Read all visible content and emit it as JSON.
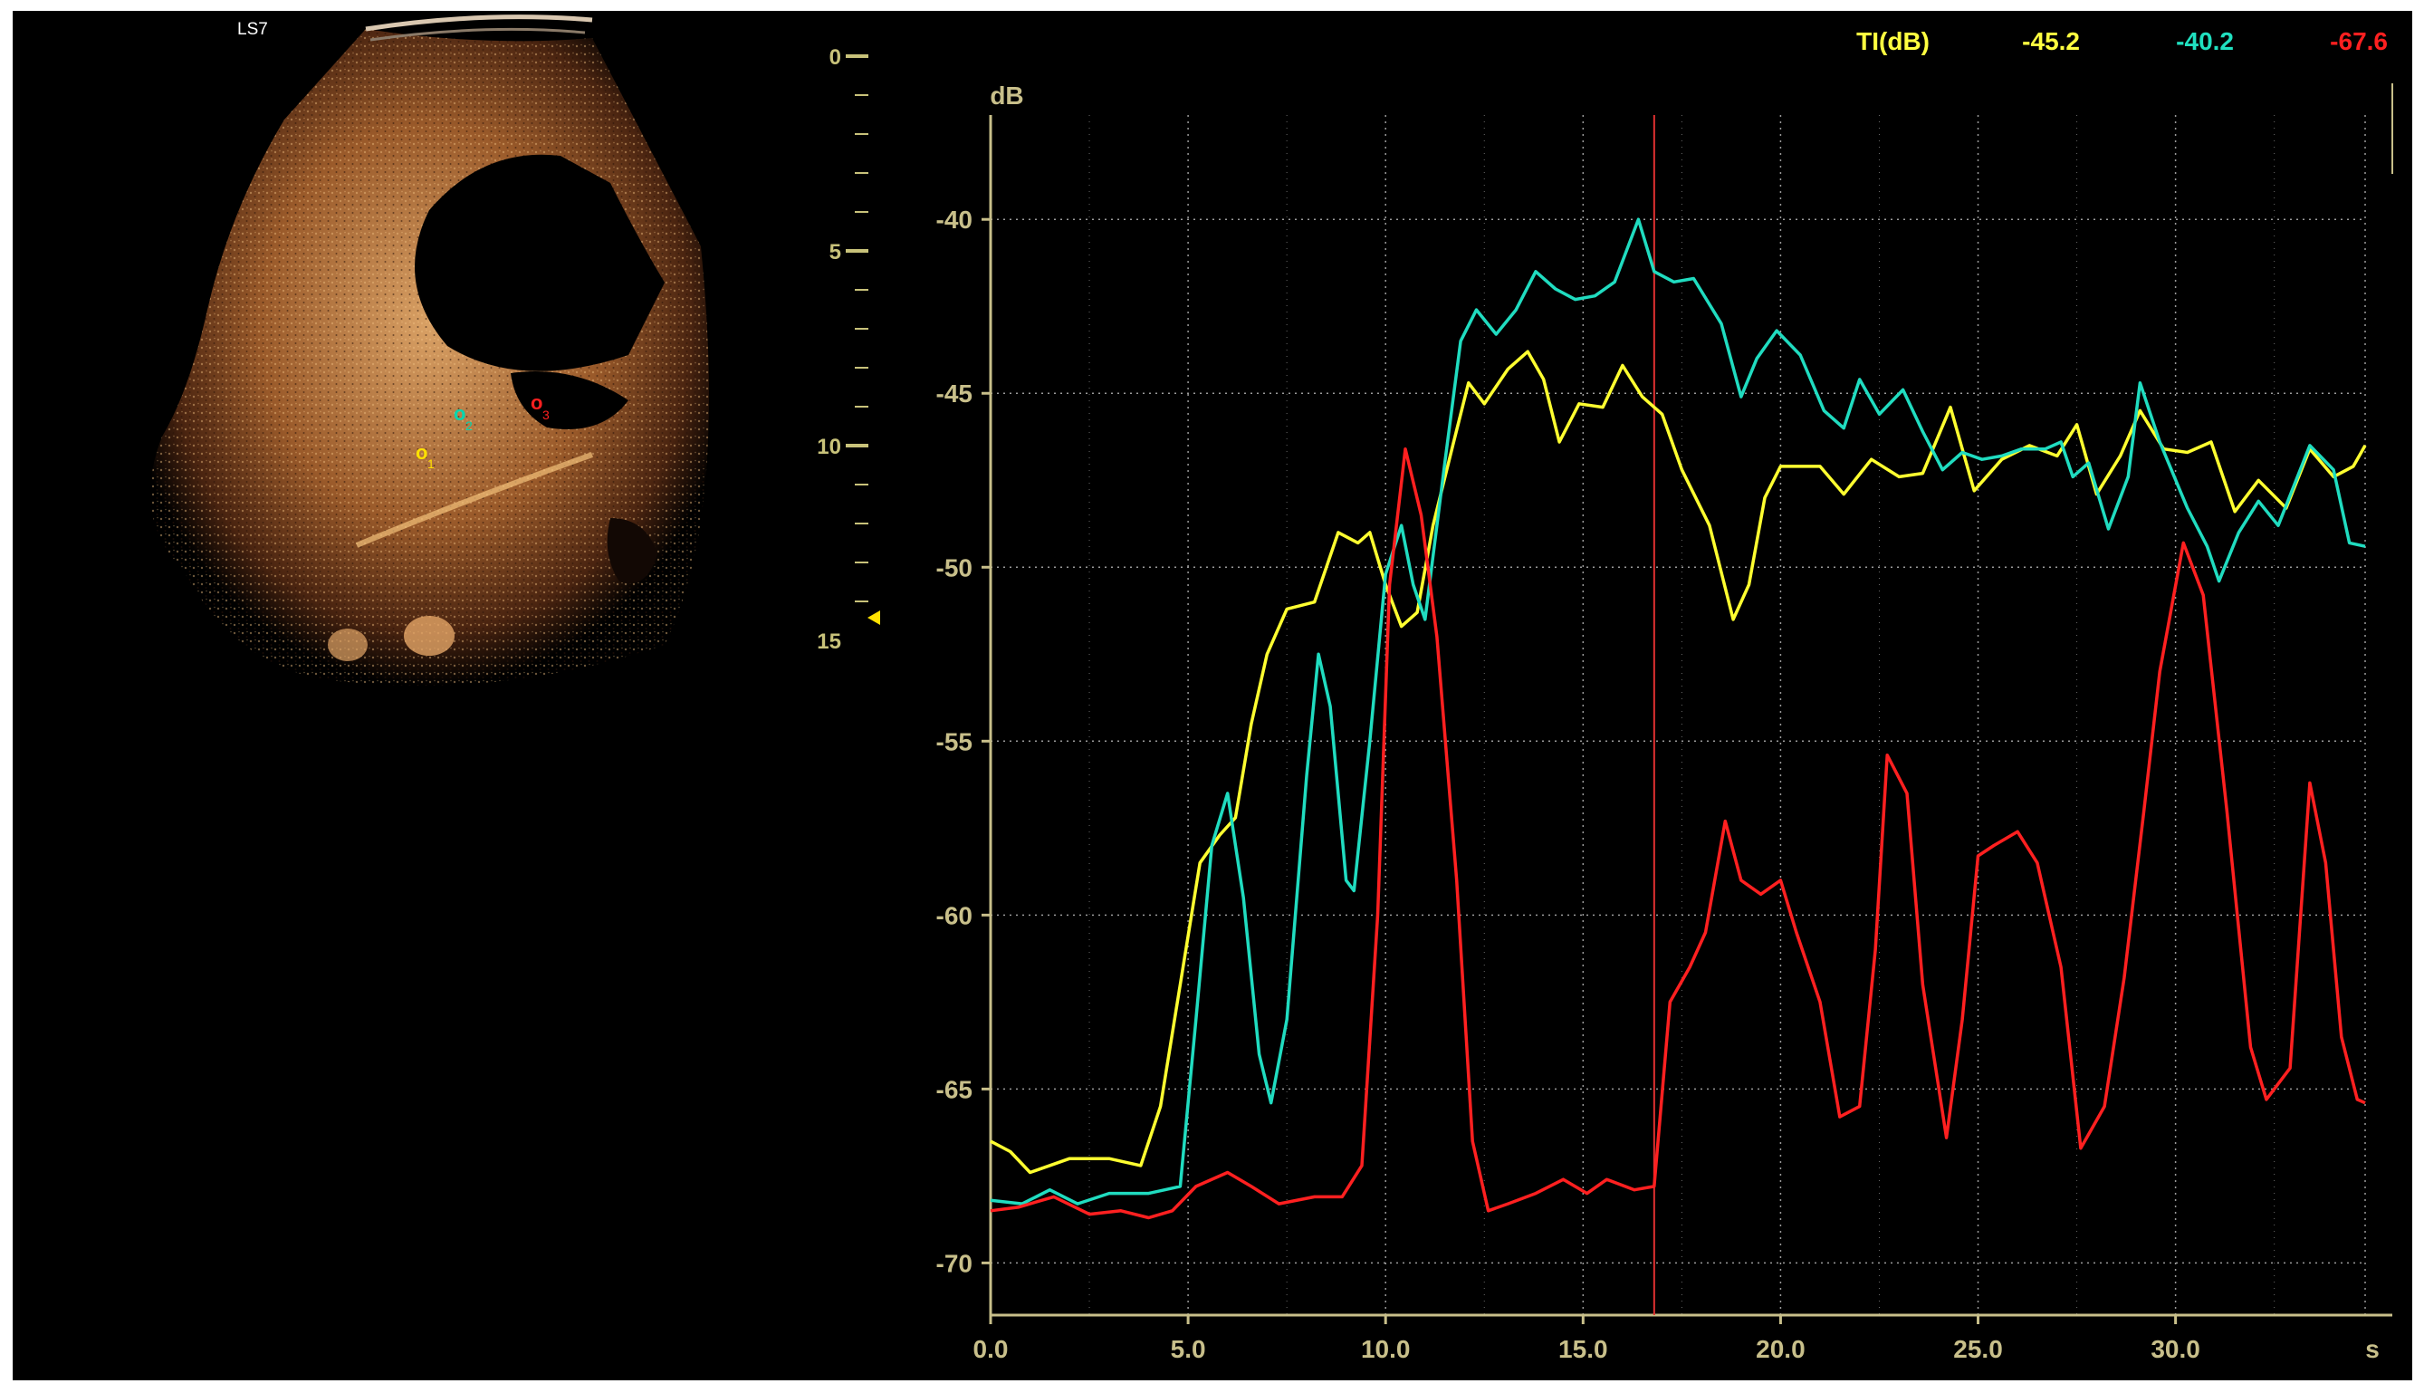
{
  "ultrasound": {
    "label": "LS7",
    "depth_ticks": [
      "0",
      "5",
      "10",
      "15"
    ],
    "roi_markers": [
      {
        "name": "roi-1",
        "color": "#ffe100",
        "label": "1"
      },
      {
        "name": "roi-2",
        "color": "#00d6b0",
        "label": "2"
      },
      {
        "name": "roi-3",
        "color": "#ff2020",
        "label": "3"
      }
    ]
  },
  "ti_readout": {
    "label": "TI(dB)",
    "values": [
      {
        "value": "-45.2",
        "color": "#ffff40"
      },
      {
        "value": "-40.2",
        "color": "#20e0c0"
      },
      {
        "value": "-67.6",
        "color": "#ff2020"
      }
    ]
  },
  "chart_data": {
    "type": "line",
    "ylabel": "dB",
    "xlabel": "s",
    "xlim": [
      0,
      34.8
    ],
    "ylim": [
      -71.5,
      -37.0
    ],
    "x_ticks": [
      0,
      5,
      10,
      15,
      20,
      25,
      30
    ],
    "x_tick_labels": [
      "0.0",
      "5.0",
      "10.0",
      "15.0",
      "20.0",
      "25.0",
      "30.0"
    ],
    "y_ticks": [
      -40,
      -45,
      -50,
      -55,
      -60,
      -65,
      -70
    ],
    "y_tick_labels": [
      "-40",
      "-45",
      "-50",
      "-55",
      "-60",
      "-65",
      "-70"
    ],
    "grid": true,
    "cursor_x": 16.8,
    "series": [
      {
        "color": "#ffff30",
        "points": [
          [
            0,
            -66.5
          ],
          [
            0.5,
            -66.8
          ],
          [
            1,
            -67.4
          ],
          [
            2,
            -67.0
          ],
          [
            3,
            -67.0
          ],
          [
            3.8,
            -67.2
          ],
          [
            4.3,
            -65.5
          ],
          [
            4.8,
            -62
          ],
          [
            5.3,
            -58.5
          ],
          [
            5.8,
            -57.7
          ],
          [
            6.2,
            -57.2
          ],
          [
            6.6,
            -54.5
          ],
          [
            7,
            -52.5
          ],
          [
            7.5,
            -51.2
          ],
          [
            8.2,
            -51
          ],
          [
            8.8,
            -49
          ],
          [
            9.3,
            -49.3
          ],
          [
            9.6,
            -49
          ],
          [
            10,
            -50.5
          ],
          [
            10.4,
            -51.7
          ],
          [
            10.8,
            -51.3
          ],
          [
            11.2,
            -48.8
          ],
          [
            11.7,
            -46.5
          ],
          [
            12.1,
            -44.7
          ],
          [
            12.5,
            -45.3
          ],
          [
            13.1,
            -44.3
          ],
          [
            13.6,
            -43.8
          ],
          [
            14,
            -44.6
          ],
          [
            14.4,
            -46.4
          ],
          [
            14.9,
            -45.3
          ],
          [
            15.5,
            -45.4
          ],
          [
            16,
            -44.2
          ],
          [
            16.5,
            -45.1
          ],
          [
            17,
            -45.6
          ],
          [
            17.5,
            -47.2
          ],
          [
            18.2,
            -48.8
          ],
          [
            18.8,
            -51.5
          ],
          [
            19.2,
            -50.5
          ],
          [
            19.6,
            -48
          ],
          [
            20,
            -47.1
          ],
          [
            21,
            -47.1
          ],
          [
            21.6,
            -47.9
          ],
          [
            22.3,
            -46.9
          ],
          [
            23,
            -47.4
          ],
          [
            23.6,
            -47.3
          ],
          [
            24.3,
            -45.4
          ],
          [
            24.9,
            -47.8
          ],
          [
            25.6,
            -46.9
          ],
          [
            26.3,
            -46.5
          ],
          [
            27,
            -46.8
          ],
          [
            27.5,
            -45.9
          ],
          [
            28,
            -47.9
          ],
          [
            28.6,
            -46.8
          ],
          [
            29.1,
            -45.5
          ],
          [
            29.7,
            -46.6
          ],
          [
            30.3,
            -46.7
          ],
          [
            30.9,
            -46.4
          ],
          [
            31.5,
            -48.4
          ],
          [
            32.1,
            -47.5
          ],
          [
            32.8,
            -48.3
          ],
          [
            33.4,
            -46.6
          ],
          [
            34,
            -47.4
          ],
          [
            34.5,
            -47.1
          ],
          [
            34.8,
            -46.5
          ]
        ]
      },
      {
        "color": "#20dcc0",
        "points": [
          [
            0,
            -68.2
          ],
          [
            0.8,
            -68.3
          ],
          [
            1.5,
            -67.9
          ],
          [
            2.2,
            -68.3
          ],
          [
            3,
            -68.0
          ],
          [
            4,
            -68.0
          ],
          [
            4.8,
            -67.8
          ],
          [
            5.2,
            -63
          ],
          [
            5.6,
            -58
          ],
          [
            6,
            -56.5
          ],
          [
            6.4,
            -59.5
          ],
          [
            6.8,
            -64
          ],
          [
            7.1,
            -65.4
          ],
          [
            7.5,
            -63
          ],
          [
            8,
            -56
          ],
          [
            8.3,
            -52.5
          ],
          [
            8.6,
            -54
          ],
          [
            9,
            -59
          ],
          [
            9.2,
            -59.3
          ],
          [
            9.6,
            -55
          ],
          [
            10,
            -50.2
          ],
          [
            10.4,
            -48.8
          ],
          [
            10.7,
            -50.5
          ],
          [
            11,
            -51.5
          ],
          [
            11.5,
            -47
          ],
          [
            11.9,
            -43.5
          ],
          [
            12.3,
            -42.6
          ],
          [
            12.8,
            -43.3
          ],
          [
            13.3,
            -42.6
          ],
          [
            13.8,
            -41.5
          ],
          [
            14.3,
            -42.0
          ],
          [
            14.8,
            -42.3
          ],
          [
            15.3,
            -42.2
          ],
          [
            15.8,
            -41.8
          ],
          [
            16.4,
            -40.0
          ],
          [
            16.8,
            -41.5
          ],
          [
            17.3,
            -41.8
          ],
          [
            17.8,
            -41.7
          ],
          [
            18.5,
            -43.0
          ],
          [
            19,
            -45.1
          ],
          [
            19.4,
            -44.0
          ],
          [
            19.9,
            -43.2
          ],
          [
            20.5,
            -43.9
          ],
          [
            21.1,
            -45.5
          ],
          [
            21.6,
            -46.0
          ],
          [
            22,
            -44.6
          ],
          [
            22.5,
            -45.6
          ],
          [
            23.1,
            -44.9
          ],
          [
            23.6,
            -46.1
          ],
          [
            24.1,
            -47.2
          ],
          [
            24.6,
            -46.7
          ],
          [
            25.1,
            -46.9
          ],
          [
            25.6,
            -46.8
          ],
          [
            26.1,
            -46.6
          ],
          [
            26.7,
            -46.6
          ],
          [
            27.1,
            -46.4
          ],
          [
            27.4,
            -47.4
          ],
          [
            27.8,
            -47.0
          ],
          [
            28.3,
            -48.9
          ],
          [
            28.8,
            -47.4
          ],
          [
            29.1,
            -44.7
          ],
          [
            29.6,
            -46.4
          ],
          [
            30.3,
            -48.3
          ],
          [
            30.8,
            -49.4
          ],
          [
            31.1,
            -50.4
          ],
          [
            31.6,
            -49.0
          ],
          [
            32.1,
            -48.1
          ],
          [
            32.6,
            -48.8
          ],
          [
            33.4,
            -46.5
          ],
          [
            34,
            -47.2
          ],
          [
            34.4,
            -49.3
          ],
          [
            34.8,
            -49.4
          ]
        ]
      },
      {
        "color": "#ff2020",
        "points": [
          [
            0,
            -68.5
          ],
          [
            0.7,
            -68.4
          ],
          [
            1.6,
            -68.1
          ],
          [
            2.5,
            -68.6
          ],
          [
            3.3,
            -68.5
          ],
          [
            4,
            -68.7
          ],
          [
            4.6,
            -68.5
          ],
          [
            5.2,
            -67.8
          ],
          [
            6,
            -67.4
          ],
          [
            6.6,
            -67.8
          ],
          [
            7.3,
            -68.3
          ],
          [
            8.2,
            -68.1
          ],
          [
            8.9,
            -68.1
          ],
          [
            9.4,
            -67.2
          ],
          [
            9.8,
            -60
          ],
          [
            10.1,
            -50.5
          ],
          [
            10.5,
            -46.6
          ],
          [
            10.9,
            -48.5
          ],
          [
            11.3,
            -52
          ],
          [
            11.8,
            -59
          ],
          [
            12.2,
            -66.5
          ],
          [
            12.6,
            -68.5
          ],
          [
            13.1,
            -68.3
          ],
          [
            13.8,
            -68.0
          ],
          [
            14.5,
            -67.6
          ],
          [
            15.1,
            -68.0
          ],
          [
            15.6,
            -67.6
          ],
          [
            16.3,
            -67.9
          ],
          [
            16.8,
            -67.8
          ],
          [
            17.2,
            -62.5
          ],
          [
            17.7,
            -61.5
          ],
          [
            18.1,
            -60.5
          ],
          [
            18.6,
            -57.3
          ],
          [
            19,
            -59.0
          ],
          [
            19.5,
            -59.4
          ],
          [
            20,
            -59.0
          ],
          [
            20.4,
            -60.5
          ],
          [
            21,
            -62.5
          ],
          [
            21.5,
            -65.8
          ],
          [
            22,
            -65.5
          ],
          [
            22.4,
            -61
          ],
          [
            22.7,
            -55.4
          ],
          [
            23.2,
            -56.5
          ],
          [
            23.6,
            -62
          ],
          [
            24.2,
            -66.4
          ],
          [
            24.6,
            -63
          ],
          [
            25,
            -58.3
          ],
          [
            25.4,
            -58.0
          ],
          [
            26,
            -57.6
          ],
          [
            26.5,
            -58.5
          ],
          [
            27.1,
            -61.5
          ],
          [
            27.6,
            -66.7
          ],
          [
            28.2,
            -65.5
          ],
          [
            28.7,
            -61.8
          ],
          [
            29.2,
            -57
          ],
          [
            29.6,
            -53
          ],
          [
            30.2,
            -49.3
          ],
          [
            30.7,
            -50.8
          ],
          [
            31.3,
            -57
          ],
          [
            31.9,
            -63.8
          ],
          [
            32.3,
            -65.3
          ],
          [
            32.9,
            -64.4
          ],
          [
            33.4,
            -56.2
          ],
          [
            33.8,
            -58.5
          ],
          [
            34.2,
            -63.5
          ],
          [
            34.6,
            -65.3
          ],
          [
            34.8,
            -65.4
          ]
        ]
      }
    ]
  }
}
